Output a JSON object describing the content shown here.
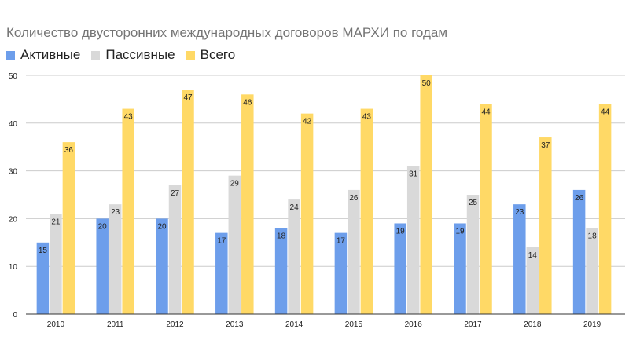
{
  "chart_data": {
    "type": "bar",
    "title": "Количество двусторонних международных договоров МАРХИ по годам",
    "xlabel": "",
    "ylabel": "",
    "ylim": [
      0,
      50
    ],
    "yticks": [
      0,
      10,
      20,
      30,
      40,
      50
    ],
    "grid": true,
    "legend_position": "top-left",
    "categories": [
      "2010",
      "2011",
      "2012",
      "2013",
      "2014",
      "2015",
      "2016",
      "2017",
      "2018",
      "2019"
    ],
    "series": [
      {
        "name": "Активные",
        "color": "#6d9eeb",
        "values": [
          15,
          20,
          20,
          17,
          18,
          17,
          19,
          19,
          23,
          26
        ]
      },
      {
        "name": "Пассивные",
        "color": "#d9d9d9",
        "values": [
          21,
          23,
          27,
          29,
          24,
          26,
          31,
          25,
          14,
          18
        ]
      },
      {
        "name": "Всего",
        "color": "#ffd966",
        "values": [
          36,
          43,
          47,
          46,
          42,
          43,
          50,
          44,
          37,
          44
        ]
      }
    ]
  }
}
